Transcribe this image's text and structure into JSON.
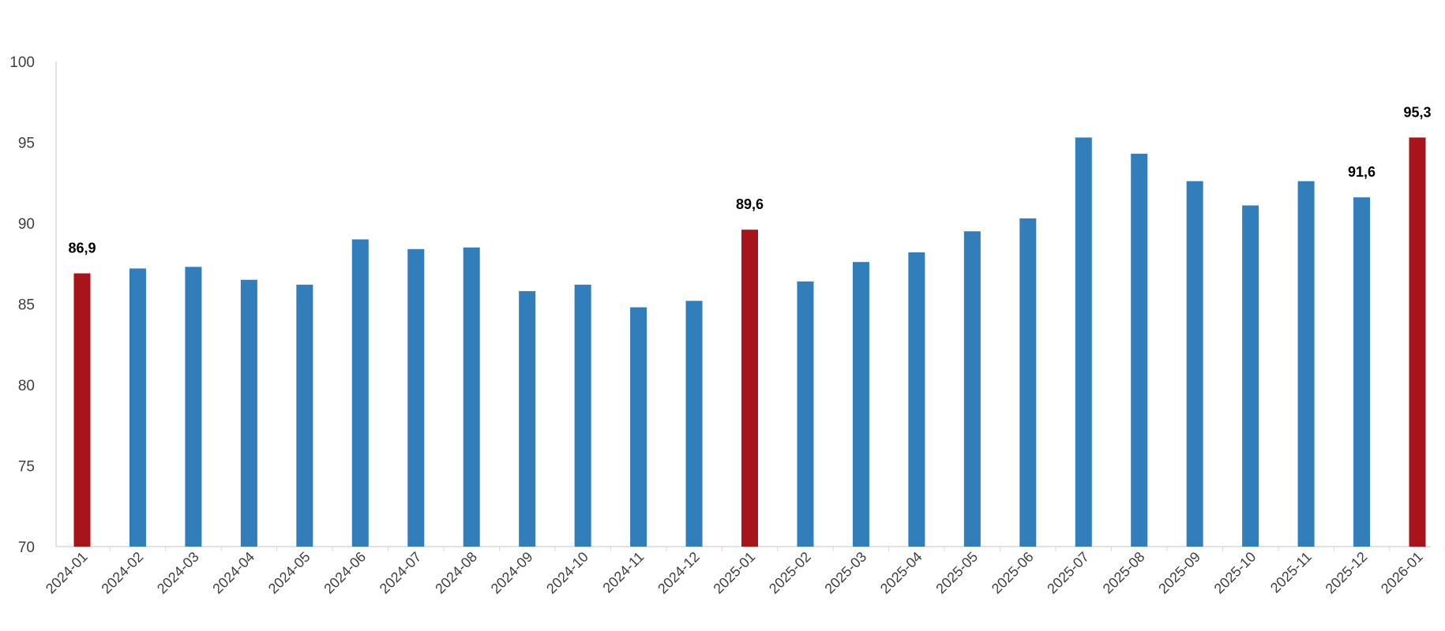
{
  "chart_data": {
    "type": "bar",
    "title": "",
    "xlabel": "",
    "ylabel": "",
    "ylim": [
      70,
      100
    ],
    "yticks": [
      "70",
      "75",
      "80",
      "85",
      "90",
      "95",
      "100"
    ],
    "grid": false,
    "categories": [
      "2024-01",
      "2024-02",
      "2024-03",
      "2024-04",
      "2024-05",
      "2024-06",
      "2024-07",
      "2024-08",
      "2024-09",
      "2024-10",
      "2024-11",
      "2024-12",
      "2025-01",
      "2025-02",
      "2025-03",
      "2025-04",
      "2025-05",
      "2025-06",
      "2025-07",
      "2025-08",
      "2025-09",
      "2025-10",
      "2025-11",
      "2025-12",
      "2026-01"
    ],
    "values": [
      86.9,
      87.2,
      87.3,
      86.5,
      86.2,
      89.0,
      88.4,
      88.5,
      85.8,
      86.2,
      84.8,
      85.2,
      89.6,
      86.4,
      87.6,
      88.2,
      89.5,
      90.3,
      95.3,
      94.3,
      92.6,
      91.1,
      92.6,
      91.6,
      95.3
    ],
    "highlighted": [
      "2024-01",
      "2025-01",
      "2026-01"
    ],
    "data_labels": {
      "2024-01": "86,9",
      "2025-01": "89,6",
      "2025-12": "91,6",
      "2026-01": "95,3"
    },
    "colors": {
      "bar": "#317EBA",
      "highlight": "#A8141B",
      "axis": "#D9D9D9"
    }
  }
}
